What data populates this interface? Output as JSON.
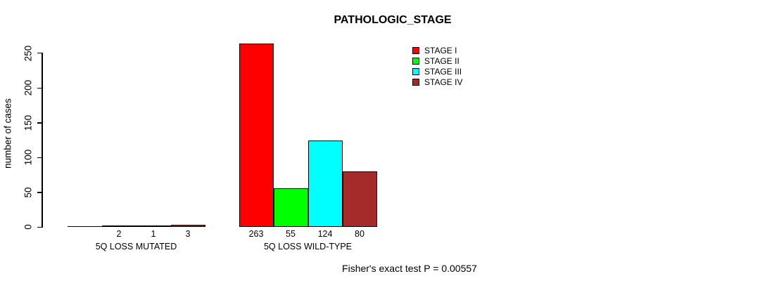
{
  "chart_data": {
    "type": "bar",
    "title": "PATHOLOGIC_STAGE",
    "ylabel": "number of cases",
    "yticks": [
      0,
      50,
      100,
      150,
      200,
      250
    ],
    "ylim": [
      0,
      263
    ],
    "grid": false,
    "legend_position": "top-right",
    "stages": [
      {
        "name": "STAGE I",
        "color": "#FF0000"
      },
      {
        "name": "STAGE II",
        "color": "#00FF00"
      },
      {
        "name": "STAGE III",
        "color": "#00FFFF"
      },
      {
        "name": "STAGE IV",
        "color": "#A52A2A"
      }
    ],
    "groups": [
      {
        "label": "5Q LOSS MUTATED",
        "values": [
          0,
          2,
          1,
          3
        ],
        "bar_labels": [
          "",
          "2",
          "1",
          "3"
        ]
      },
      {
        "label": "5Q LOSS WILD-TYPE",
        "values": [
          263,
          55,
          124,
          80
        ],
        "bar_labels": [
          "263",
          "55",
          "124",
          "80"
        ]
      }
    ],
    "footnote": "Fisher's exact test P = 0.00557",
    "axis_color": "#000000",
    "text_color": "#000000"
  }
}
